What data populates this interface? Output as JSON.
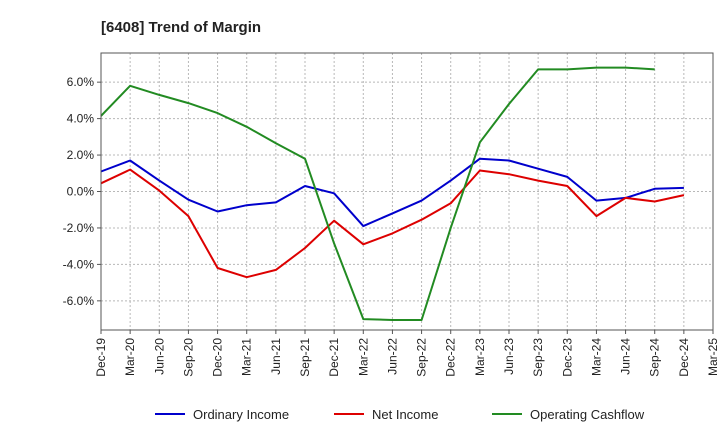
{
  "chart_data": {
    "type": "line",
    "title": "[6408]  Trend of Margin",
    "xlabel": "",
    "ylabel": "",
    "categories": [
      "Dec-19",
      "Mar-20",
      "Jun-20",
      "Sep-20",
      "Dec-20",
      "Mar-21",
      "Jun-21",
      "Sep-21",
      "Dec-21",
      "Mar-22",
      "Jun-22",
      "Sep-22",
      "Dec-22",
      "Mar-23",
      "Jun-23",
      "Sep-23",
      "Dec-23",
      "Mar-24",
      "Jun-24",
      "Sep-24",
      "Dec-24",
      "Mar-25"
    ],
    "ylim": [
      -7.6,
      7.6
    ],
    "yticks": [
      -6,
      -4,
      -2,
      0,
      2,
      4,
      6
    ],
    "ytick_labels": [
      "-6.0%",
      "-4.0%",
      "-2.0%",
      "0.0%",
      "2.0%",
      "4.0%",
      "6.0%"
    ],
    "grid": true,
    "legend_position": "bottom",
    "series": [
      {
        "name": "Ordinary Income",
        "color": "#0000cc",
        "values": [
          1.1,
          1.7,
          0.6,
          -0.45,
          -1.1,
          -0.75,
          -0.6,
          0.3,
          -0.1,
          -1.9,
          -1.2,
          -0.5,
          0.6,
          1.8,
          1.7,
          1.25,
          0.8,
          -0.5,
          -0.35,
          0.15,
          0.2,
          null
        ]
      },
      {
        "name": "Net Income",
        "color": "#dd0000",
        "values": [
          0.45,
          1.2,
          0.05,
          -1.35,
          -4.2,
          -4.7,
          -4.3,
          -3.1,
          -1.6,
          -2.9,
          -2.3,
          -1.55,
          -0.65,
          1.15,
          0.95,
          0.6,
          0.3,
          -1.35,
          -0.35,
          -0.55,
          -0.2,
          null
        ]
      },
      {
        "name": "Operating Cashflow",
        "color": "#228b22",
        "values": [
          4.15,
          5.8,
          5.3,
          4.85,
          4.3,
          3.55,
          2.65,
          1.8,
          -2.85,
          -7.0,
          -7.05,
          -7.05,
          -2.0,
          2.7,
          4.8,
          6.7,
          6.7,
          6.8,
          6.8,
          6.7,
          null,
          null
        ]
      }
    ]
  }
}
